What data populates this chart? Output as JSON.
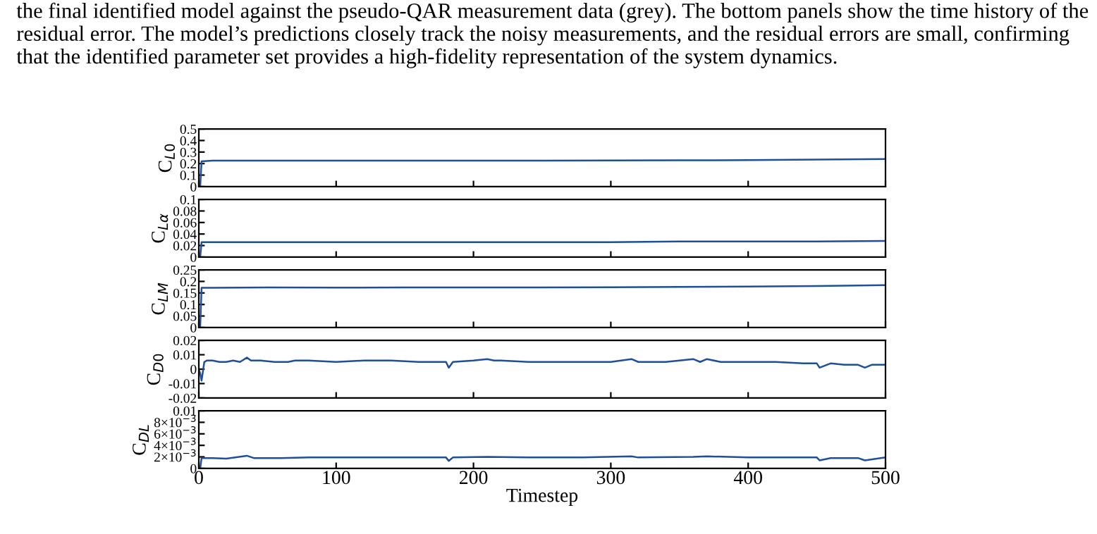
{
  "chart_data": [
    {
      "type": "line",
      "ylabel": "C$_{L0}$",
      "annotations": [
        "the final identified model against the pseudo-QAR measurement data (grey). The bottom panels show the time history of the residual error. The model’s predictions closely track the noisy measurements, and the residual errors are small, confirming that the identified parameter set provides a high-fidelity representation of the system dynamics."
      ],
      "xlim": [
        0,
        500
      ],
      "xticks": [
        0,
        100,
        200,
        300,
        400,
        500
      ],
      "ylim": [
        0,
        0.5
      ],
      "yticks": [
        0,
        0.1,
        0.2,
        0.3,
        0.4,
        0.5
      ],
      "tick_labels": "y",
      "series": [
        {
          "color": "#1f4f9a",
          "x": [
            0,
            1,
            2,
            10,
            50,
            100,
            150,
            200,
            250,
            300,
            350,
            400,
            450,
            500
          ],
          "values": [
            0,
            0,
            0.22,
            0.225,
            0.225,
            0.225,
            0.226,
            0.225,
            0.226,
            0.227,
            0.228,
            0.23,
            0.234,
            0.24
          ]
        }
      ]
    },
    {
      "type": "line",
      "ylabel": "C$_{Lα}$",
      "xlim": [
        0,
        500
      ],
      "xticks": [
        0,
        100,
        200,
        300,
        400,
        500
      ],
      "ylim": [
        0,
        0.1
      ],
      "yticks": [
        0,
        0.02,
        0.04,
        0.06,
        0.08,
        0.1
      ],
      "tick_labels": "y",
      "series": [
        {
          "color": "#1f4f9a",
          "x": [
            0,
            1,
            2,
            10,
            50,
            100,
            150,
            200,
            250,
            300,
            350,
            400,
            450,
            500
          ],
          "values": [
            0,
            0,
            0.026,
            0.026,
            0.026,
            0.026,
            0.026,
            0.026,
            0.026,
            0.026,
            0.027,
            0.027,
            0.027,
            0.028
          ]
        }
      ]
    },
    {
      "type": "line",
      "ylabel": "C$_{LM}$",
      "xlim": [
        0,
        500
      ],
      "xticks": [
        0,
        100,
        200,
        300,
        400,
        500
      ],
      "ylim": [
        0,
        0.25
      ],
      "yticks": [
        0,
        0.05,
        0.1,
        0.15,
        0.2,
        0.25
      ],
      "tick_labels": "y",
      "series": [
        {
          "color": "#1f4f9a",
          "x": [
            0,
            1,
            2,
            10,
            50,
            100,
            150,
            200,
            250,
            300,
            350,
            400,
            450,
            500
          ],
          "values": [
            0,
            0,
            0.172,
            0.172,
            0.174,
            0.173,
            0.174,
            0.174,
            0.174,
            0.175,
            0.176,
            0.178,
            0.18,
            0.184
          ]
        }
      ]
    },
    {
      "type": "line",
      "ylabel": "C$_{D0}$",
      "xlim": [
        0,
        500
      ],
      "xticks": [
        0,
        100,
        200,
        300,
        400,
        500
      ],
      "ylim": [
        -0.02,
        0.02
      ],
      "yticks": [
        -0.02,
        -0.01,
        0,
        0.01,
        0.02
      ],
      "tick_labels": "y",
      "series": [
        {
          "color": "#1f4f9a",
          "x": [
            0,
            1,
            2,
            4,
            6,
            10,
            15,
            20,
            25,
            30,
            35,
            38,
            45,
            55,
            65,
            70,
            80,
            100,
            120,
            140,
            160,
            180,
            182,
            185,
            200,
            210,
            215,
            220,
            240,
            260,
            280,
            300,
            315,
            320,
            340,
            360,
            365,
            370,
            380,
            400,
            420,
            440,
            450,
            452,
            460,
            470,
            480,
            485,
            490,
            500
          ],
          "values": [
            0,
            -0.003,
            -0.008,
            0.005,
            0.006,
            0.006,
            0.005,
            0.005,
            0.006,
            0.005,
            0.008,
            0.006,
            0.006,
            0.005,
            0.005,
            0.006,
            0.006,
            0.005,
            0.006,
            0.006,
            0.005,
            0.005,
            0.001,
            0.005,
            0.006,
            0.007,
            0.006,
            0.006,
            0.005,
            0.005,
            0.005,
            0.005,
            0.007,
            0.005,
            0.005,
            0.007,
            0.005,
            0.007,
            0.005,
            0.005,
            0.005,
            0.004,
            0.004,
            0.001,
            0.004,
            0.003,
            0.003,
            0.001,
            0.003,
            0.003
          ]
        }
      ]
    },
    {
      "type": "line",
      "ylabel": "C$_{DL}$",
      "xlabel": "Timestep",
      "xlim": [
        0,
        500
      ],
      "xticks": [
        0,
        100,
        200,
        300,
        400,
        500
      ],
      "ylim": [
        0,
        0.01
      ],
      "yticks": [
        0,
        {
          "value": 0.002,
          "label": "2×10$^{−3}$"
        },
        {
          "value": 0.004,
          "label": "4×10$^{−3}$"
        },
        {
          "value": 0.006,
          "label": "6×10$^{−3}$"
        },
        {
          "value": 0.008,
          "label": "8×10$^{−3}$"
        },
        0.01
      ],
      "series": [
        {
          "color": "#1f4f9a",
          "x": [
            0,
            1,
            2,
            4,
            10,
            20,
            35,
            40,
            60,
            80,
            100,
            140,
            180,
            182,
            185,
            210,
            240,
            280,
            315,
            320,
            360,
            370,
            400,
            440,
            450,
            452,
            460,
            480,
            485,
            500
          ],
          "values": [
            0,
            0,
            0.0018,
            0.0018,
            0.0018,
            0.0017,
            0.0022,
            0.0018,
            0.0018,
            0.0019,
            0.0019,
            0.0019,
            0.0019,
            0.0013,
            0.0019,
            0.002,
            0.0019,
            0.0019,
            0.0021,
            0.0019,
            0.002,
            0.0021,
            0.0019,
            0.0019,
            0.0019,
            0.0014,
            0.0018,
            0.0018,
            0.0014,
            0.0019
          ]
        }
      ]
    }
  ]
}
